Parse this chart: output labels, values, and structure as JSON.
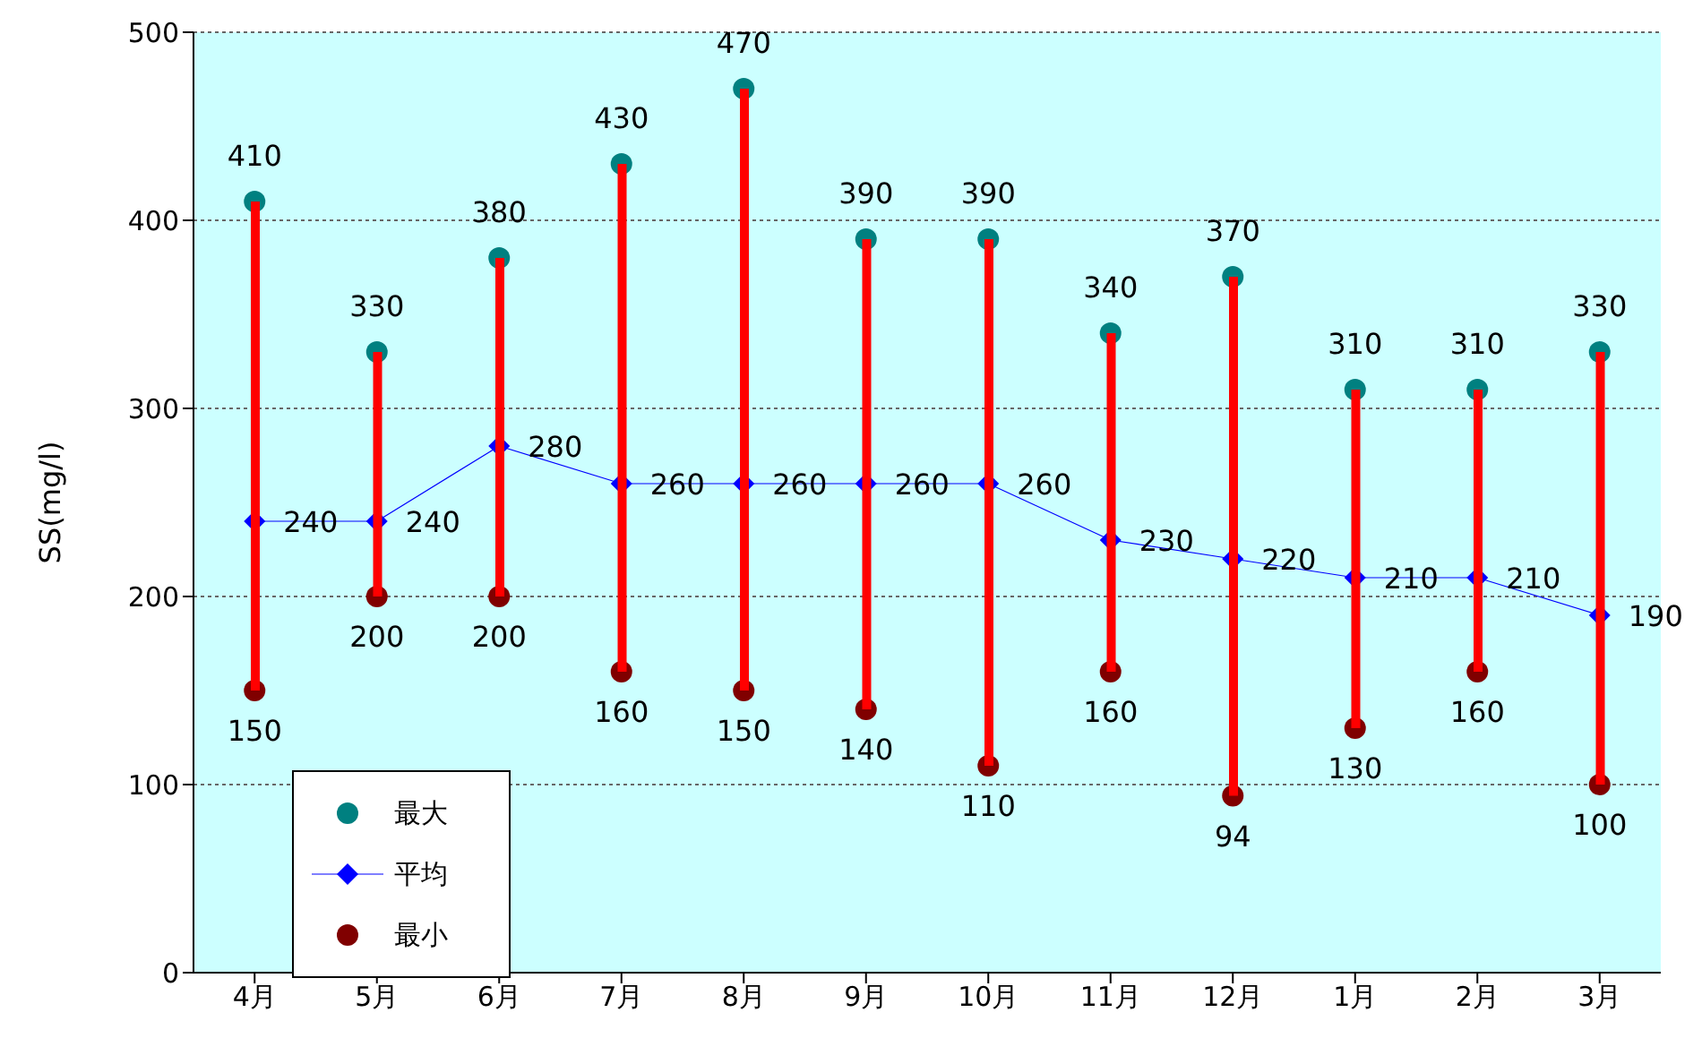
{
  "chart_data": {
    "type": "bar",
    "ylabel": "SS(mg/l)",
    "categories": [
      "4月",
      "5月",
      "6月",
      "7月",
      "8月",
      "9月",
      "10月",
      "11月",
      "12月",
      "1月",
      "2月",
      "3月"
    ],
    "ylim": [
      0,
      500
    ],
    "yticks": [
      0,
      100,
      200,
      300,
      400,
      500
    ],
    "grid": "y",
    "legend": "bottom left",
    "data_labels": true,
    "series": [
      {
        "color": "#ff0000",
        "base": [
          150,
          200,
          200,
          160,
          150,
          140,
          110,
          160,
          94,
          130,
          160,
          100
        ],
        "values": [
          260,
          130,
          180,
          270,
          320,
          250,
          280,
          180,
          276,
          180,
          150,
          230
        ],
        "value_labels": [
          null,
          null,
          null,
          null,
          null,
          null,
          null,
          null,
          null,
          null,
          null,
          null
        ]
      },
      {
        "name": "最大",
        "type": "scatter",
        "marker": "circle",
        "color": "#008080",
        "values": [
          410,
          330,
          380,
          430,
          470,
          390,
          390,
          340,
          370,
          310,
          310,
          330
        ]
      },
      {
        "name": "平均",
        "type": "line",
        "marker": "diamond",
        "color": "#0000ff",
        "values": [
          240,
          240,
          280,
          260,
          260,
          260,
          260,
          230,
          220,
          210,
          210,
          190
        ]
      },
      {
        "name": "最小",
        "type": "scatter",
        "marker": "circle",
        "color": "#800000",
        "values": [
          150,
          200,
          200,
          160,
          150,
          140,
          110,
          160,
          94,
          130,
          160,
          100
        ]
      }
    ]
  }
}
